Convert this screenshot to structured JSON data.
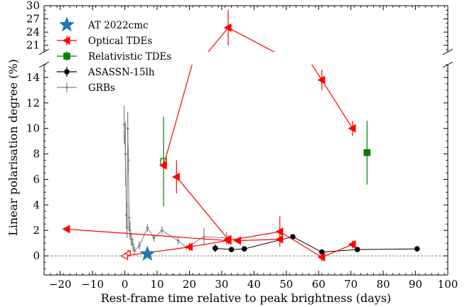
{
  "chart_data": {
    "type": "scatter",
    "xlabel": "Rest-frame time relative to peak brightness (days)",
    "ylabel": "Linear polarisation degree (%)",
    "xlim": [
      -25,
      100
    ],
    "ylim_lower": [
      -1.5,
      15
    ],
    "ylim_upper": [
      19.5,
      30
    ],
    "y_axis_break": true,
    "grid": false,
    "legend_position": "top-left",
    "x_ticks": [
      -20,
      -10,
      0,
      10,
      20,
      30,
      40,
      50,
      60,
      70,
      80,
      90,
      100
    ],
    "x_tick_labels": [
      "−20",
      "−10",
      "0",
      "10",
      "20",
      "30",
      "40",
      "50",
      "60",
      "70",
      "80",
      "90",
      "100"
    ],
    "y_ticks_lower": [
      0,
      2,
      4,
      6,
      8,
      10,
      12,
      14
    ],
    "y_ticks_upper": [
      21,
      24,
      27,
      30
    ],
    "reference_line_y": 0,
    "series": [
      {
        "name": "AT 2022cmc",
        "color": "#1f77b4",
        "marker": "star",
        "points": [
          {
            "x": 7,
            "y": 0.15
          }
        ]
      },
      {
        "name": "Optical TDEs",
        "color": "#ff0000",
        "marker": "left-triangle",
        "tracks": [
          [
            {
              "x": 12,
              "y": 7.1,
              "err": 0.4
            },
            {
              "x": 32,
              "y": 25.0,
              "err": 4.0
            },
            {
              "x": 61,
              "y": 13.8,
              "err": 0.8
            },
            {
              "x": 70.5,
              "y": 10.0,
              "err": 0.6
            }
          ],
          [
            {
              "x": 16,
              "y": 6.2,
              "err": 1.3
            },
            {
              "x": 32,
              "y": 1.3,
              "err": 0.3
            }
          ],
          [
            {
              "x": -18,
              "y": 2.1,
              "err": 0.2
            },
            {
              "x": 32,
              "y": 1.2,
              "err": 0.3
            }
          ],
          [
            {
              "x": 0,
              "y": 0.0,
              "err": 0.2,
              "open": true
            },
            {
              "x": 20,
              "y": 0.7,
              "err": 0.3
            }
          ],
          [
            {
              "x": 20,
              "y": 0.7,
              "err": 0.3
            },
            {
              "x": 48,
              "y": 1.9,
              "err": 1.2
            },
            {
              "x": 61,
              "y": -0.1,
              "err": 0.3
            },
            {
              "x": 70.5,
              "y": 0.9,
              "err": 0.3
            }
          ],
          [
            {
              "x": 35,
              "y": 1.2,
              "err": 0.2
            },
            {
              "x": 48,
              "y": 1.3,
              "err": 0.2
            }
          ]
        ],
        "extra_points": [
          {
            "x": 1,
            "y": 0.2,
            "err": 0.3
          }
        ]
      },
      {
        "name": "Relativistic TDEs",
        "color": "#008000",
        "marker": "square",
        "points": [
          {
            "x": 12,
            "y": 7.4,
            "err": 3.5,
            "open": true
          },
          {
            "x": 75,
            "y": 8.1,
            "err": 2.5
          }
        ]
      },
      {
        "name": "ASASSN-15lh",
        "color": "#000000",
        "marker": "circle",
        "points": [
          {
            "x": 28,
            "y": 0.6,
            "err": 0.3
          },
          {
            "x": 33,
            "y": 0.5,
            "err": 0.2
          },
          {
            "x": 37,
            "y": 0.55,
            "err": 0.1
          },
          {
            "x": 52,
            "y": 1.5,
            "err": 0.1
          },
          {
            "x": 61,
            "y": 0.3,
            "err": 0.2
          },
          {
            "x": 72,
            "y": 0.5,
            "err": 0.1
          },
          {
            "x": 90.5,
            "y": 0.55,
            "err": 0.1
          }
        ]
      },
      {
        "name": "GRBs",
        "color": "#808080",
        "marker": "small-diamond",
        "points": [
          {
            "x": -0.2,
            "y": 10.3,
            "err": 1.5
          },
          {
            "x": 0.2,
            "y": 8.0,
            "err": 2.5
          },
          {
            "x": 0.5,
            "y": 3.2,
            "err": 1.0
          },
          {
            "x": 0.7,
            "y": 2.2,
            "err": 0.8
          },
          {
            "x": 0.9,
            "y": 10.0,
            "err": 1.3
          },
          {
            "x": 1.1,
            "y": 7.5,
            "err": 1.0
          },
          {
            "x": 1.3,
            "y": 3.0,
            "err": 1.0
          },
          {
            "x": 1.6,
            "y": 2.0,
            "err": 0.7
          },
          {
            "x": 2.0,
            "y": 1.3,
            "err": 0.5
          },
          {
            "x": 2.5,
            "y": 0.9,
            "err": 0.5
          },
          {
            "x": 3.0,
            "y": 0.4,
            "err": 0.3
          },
          {
            "x": 4.5,
            "y": 0.8,
            "err": 0.3
          },
          {
            "x": 7.0,
            "y": 2.2,
            "err": 0.3
          },
          {
            "x": 9.0,
            "y": 1.4,
            "err": 0.3
          },
          {
            "x": 11.5,
            "y": 2.0,
            "err": 0.3
          },
          {
            "x": 16.5,
            "y": 1.2,
            "err": 0.3
          },
          {
            "x": 19.0,
            "y": 0.65,
            "err": 0.2
          },
          {
            "x": 24.5,
            "y": 1.5,
            "err": 0.7
          },
          {
            "x": 31.5,
            "y": 1.4,
            "err": 0.5
          }
        ]
      }
    ]
  }
}
